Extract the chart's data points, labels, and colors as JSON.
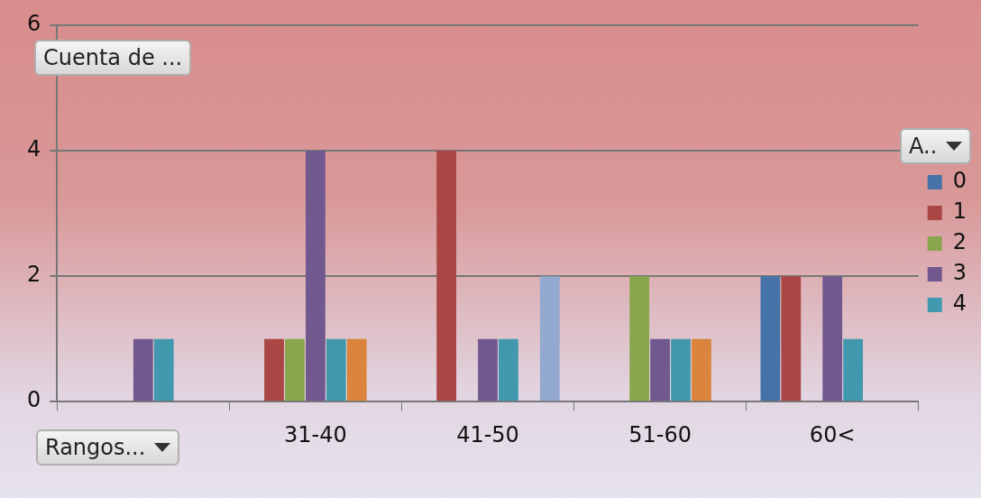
{
  "chart_data": {
    "type": "bar",
    "ylabel": "Cuenta de ...",
    "xlabel": "Rangos...",
    "legend_title": "A..",
    "categories": [
      null,
      "31-40",
      "41-50",
      "51-60",
      "60<"
    ],
    "series": [
      {
        "name": "0",
        "color": "#4572a7",
        "values": [
          null,
          null,
          null,
          null,
          2
        ]
      },
      {
        "name": "1",
        "color": "#aa4643",
        "values": [
          null,
          1,
          4,
          null,
          2
        ]
      },
      {
        "name": "2",
        "color": "#89a54e",
        "values": [
          null,
          1,
          null,
          2,
          null
        ]
      },
      {
        "name": "3",
        "color": "#71588f",
        "values": [
          1,
          4,
          1,
          1,
          2
        ]
      },
      {
        "name": "4",
        "color": "#4198af",
        "values": [
          1,
          1,
          1,
          1,
          1
        ]
      },
      {
        "color": "#db843d",
        "values": [
          null,
          1,
          null,
          1,
          null
        ]
      },
      {
        "color": "#93a9cf",
        "values": [
          null,
          null,
          2,
          null,
          null
        ]
      }
    ],
    "ylim": [
      0,
      6
    ],
    "yticks": [
      0,
      2,
      4,
      6
    ],
    "grid": "y",
    "legend": "right"
  }
}
